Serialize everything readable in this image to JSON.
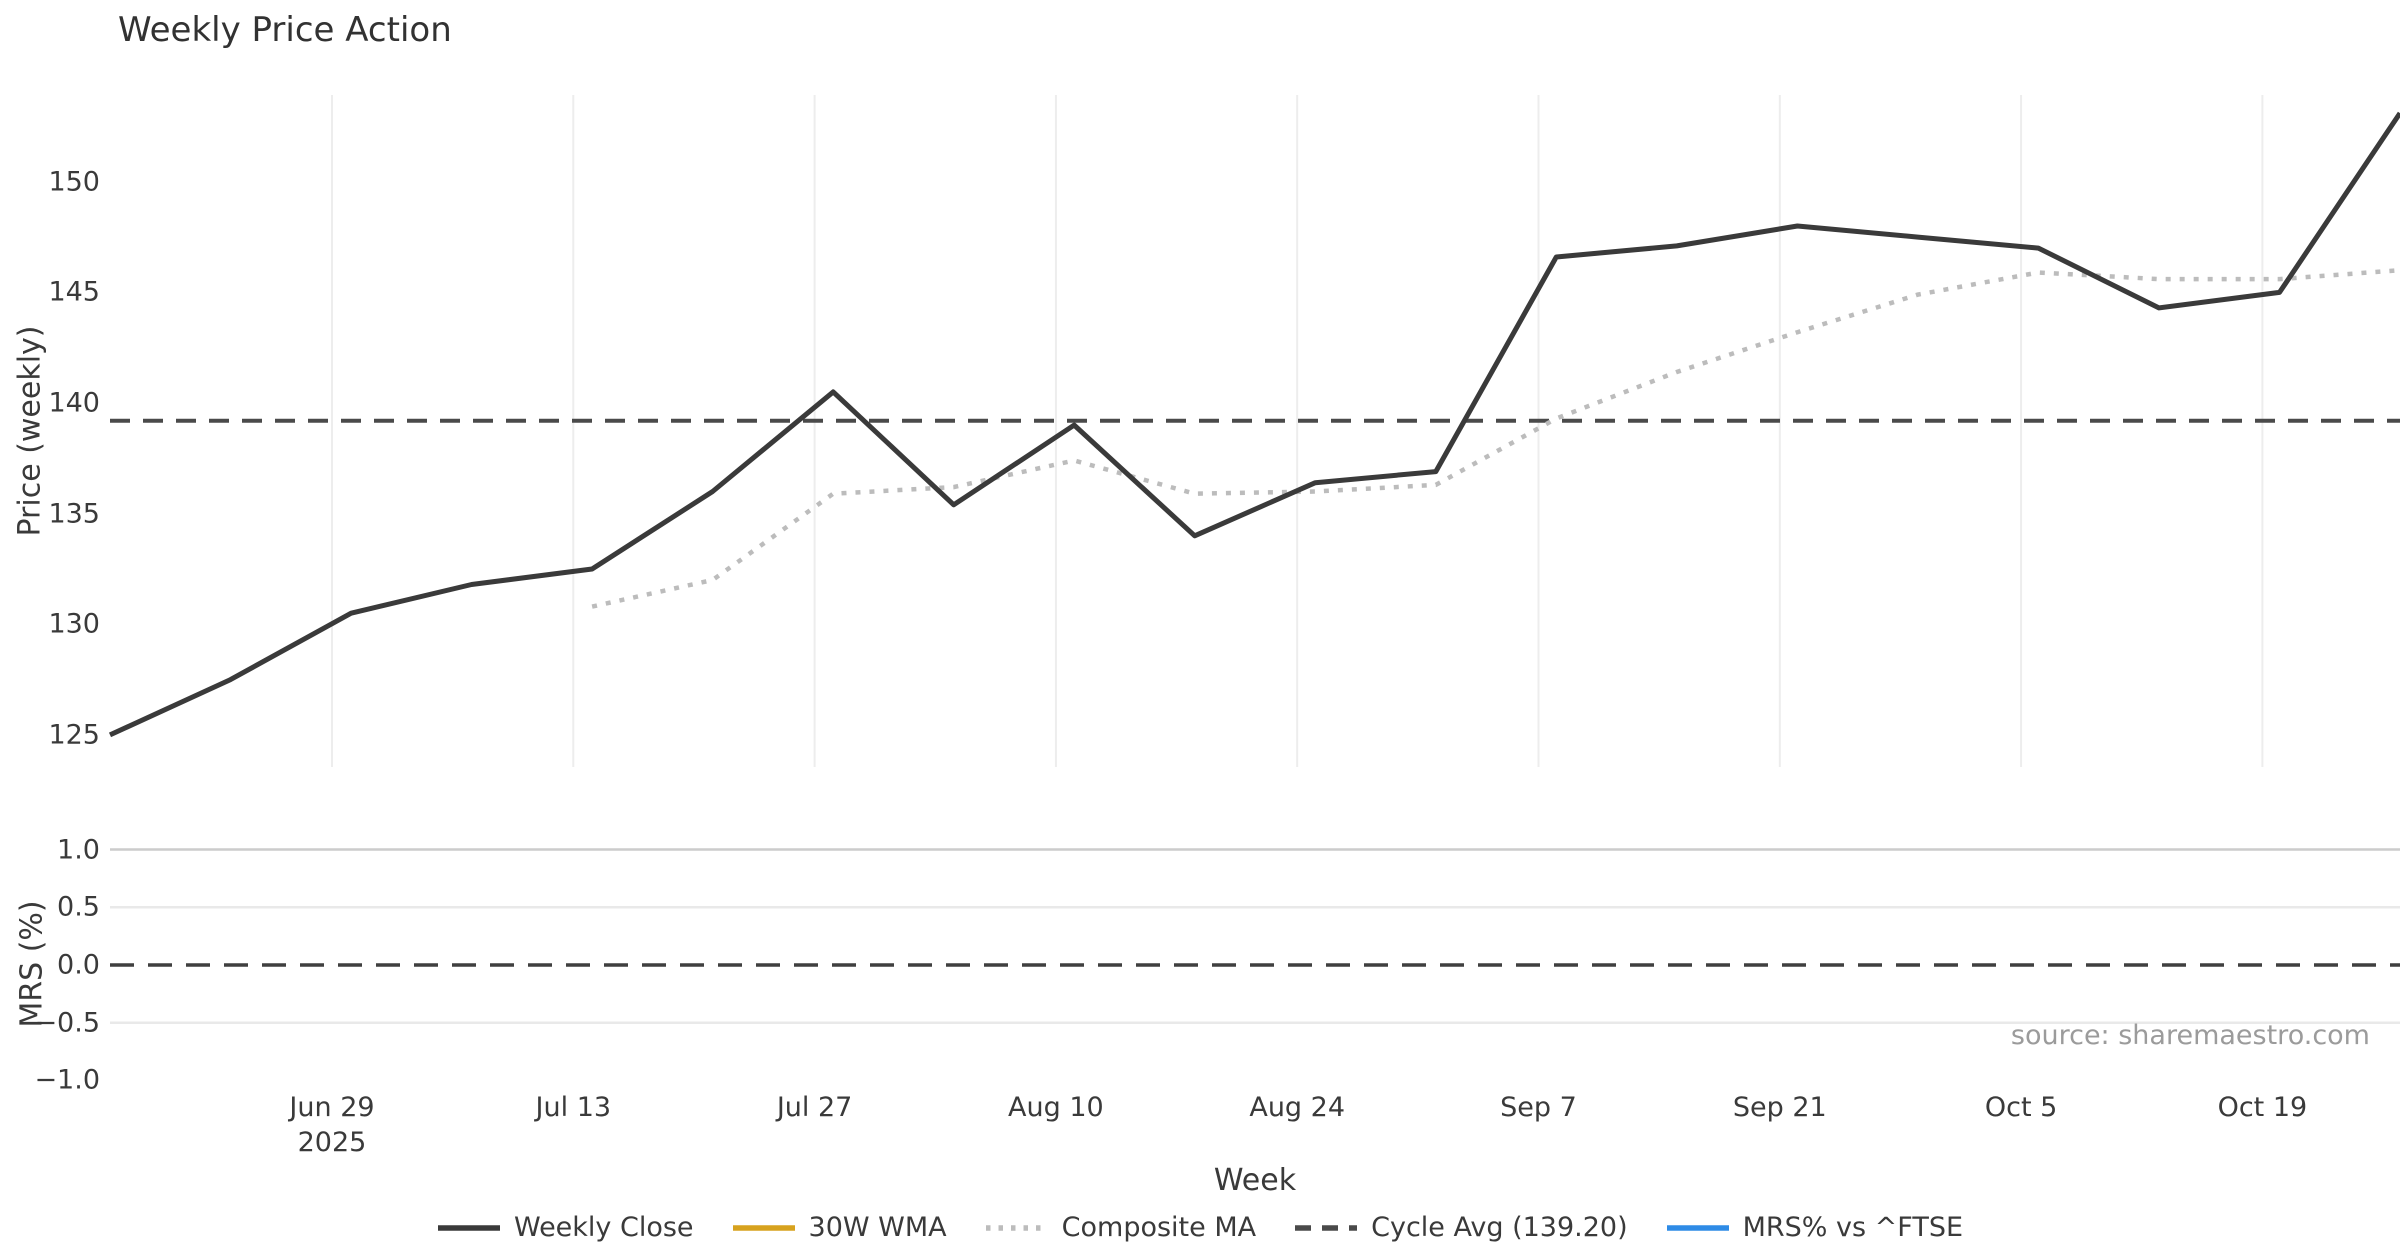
{
  "title": "Weekly Price Action",
  "source_note": "source: sharemaestro.com",
  "chart_data": {
    "type": "line",
    "title": "Weekly Price Action",
    "xlabel": "Week",
    "price_panel": {
      "ylabel": "Price (weekly)",
      "yticks": [
        125,
        130,
        135,
        140,
        145,
        150
      ],
      "ylim": [
        123.55,
        153.92
      ],
      "grid": "vertical-only"
    },
    "mrs_panel": {
      "ylabel": "MRS (%)",
      "yticks": [
        1.0,
        0.5,
        0.0,
        -0.5,
        -1.0
      ],
      "ylim": [
        -1.1,
        1.1
      ],
      "zero_line_value": 0.0,
      "grid": "horizontal-only"
    },
    "weeks": [
      "Jun 15",
      "Jun 22",
      "Jun 29",
      "Jul 6",
      "Jul 13",
      "Jul 20",
      "Jul 27",
      "Aug 3",
      "Aug 10",
      "Aug 17",
      "Aug 24",
      "Aug 31",
      "Sep 7",
      "Sep 14",
      "Sep 21",
      "Sep 28",
      "Oct 5",
      "Oct 12",
      "Oct 19",
      "Oct 26"
    ],
    "x_ticks": [
      {
        "week_index": 2,
        "label": "Jun 29",
        "sublabel": "2025"
      },
      {
        "week_index": 4,
        "label": "Jul 13",
        "sublabel": ""
      },
      {
        "week_index": 6,
        "label": "Jul 27",
        "sublabel": ""
      },
      {
        "week_index": 8,
        "label": "Aug 10",
        "sublabel": ""
      },
      {
        "week_index": 10,
        "label": "Aug 24",
        "sublabel": ""
      },
      {
        "week_index": 12,
        "label": "Sep 7",
        "sublabel": ""
      },
      {
        "week_index": 14,
        "label": "Sep 21",
        "sublabel": ""
      },
      {
        "week_index": 16,
        "label": "Oct 5",
        "sublabel": ""
      },
      {
        "week_index": 18,
        "label": "Oct 19",
        "sublabel": ""
      }
    ],
    "series": [
      {
        "name": "Weekly Close",
        "style": "solid",
        "color": "#3a3a3a",
        "width": 5,
        "start_week_index": 0,
        "values": [
          125.0,
          127.5,
          130.5,
          131.8,
          132.5,
          136.0,
          140.5,
          135.4,
          139.0,
          134.0,
          136.4,
          136.9,
          146.6,
          147.1,
          148.0,
          147.5,
          147.0,
          144.3,
          145.0,
          153.1
        ]
      },
      {
        "name": "Composite MA",
        "style": "dotted",
        "color": "#bcbcbc",
        "width": 4.5,
        "start_week_index": 4,
        "values": [
          130.8,
          132.0,
          135.9,
          136.2,
          137.4,
          135.9,
          136.0,
          136.3,
          139.3,
          141.4,
          143.2,
          144.9,
          145.9,
          145.6,
          145.6,
          146.0
        ]
      }
    ],
    "cycle_avg": {
      "label": "Cycle Avg (139.20)",
      "value": 139.2,
      "color": "#4a4a4a",
      "style": "dashed"
    },
    "legend": [
      {
        "label": "Weekly Close",
        "color": "#3a3a3a",
        "style": "solid"
      },
      {
        "label": "30W WMA",
        "color": "#d7a21e",
        "style": "solid"
      },
      {
        "label": "Composite MA",
        "color": "#bcbcbc",
        "style": "dotted"
      },
      {
        "label": "Cycle Avg (139.20)",
        "color": "#4a4a4a",
        "style": "dashed"
      },
      {
        "label": "MRS% vs ^FTSE",
        "color": "#2e8be6",
        "style": "solid"
      }
    ],
    "colors": {
      "grid_vertical": "#ededed",
      "grid_horizontal_major": "#cccccc",
      "grid_horizontal_minor": "#e9e9e9",
      "text": "#3a3a3a",
      "source_text": "#9b9b9b"
    }
  }
}
